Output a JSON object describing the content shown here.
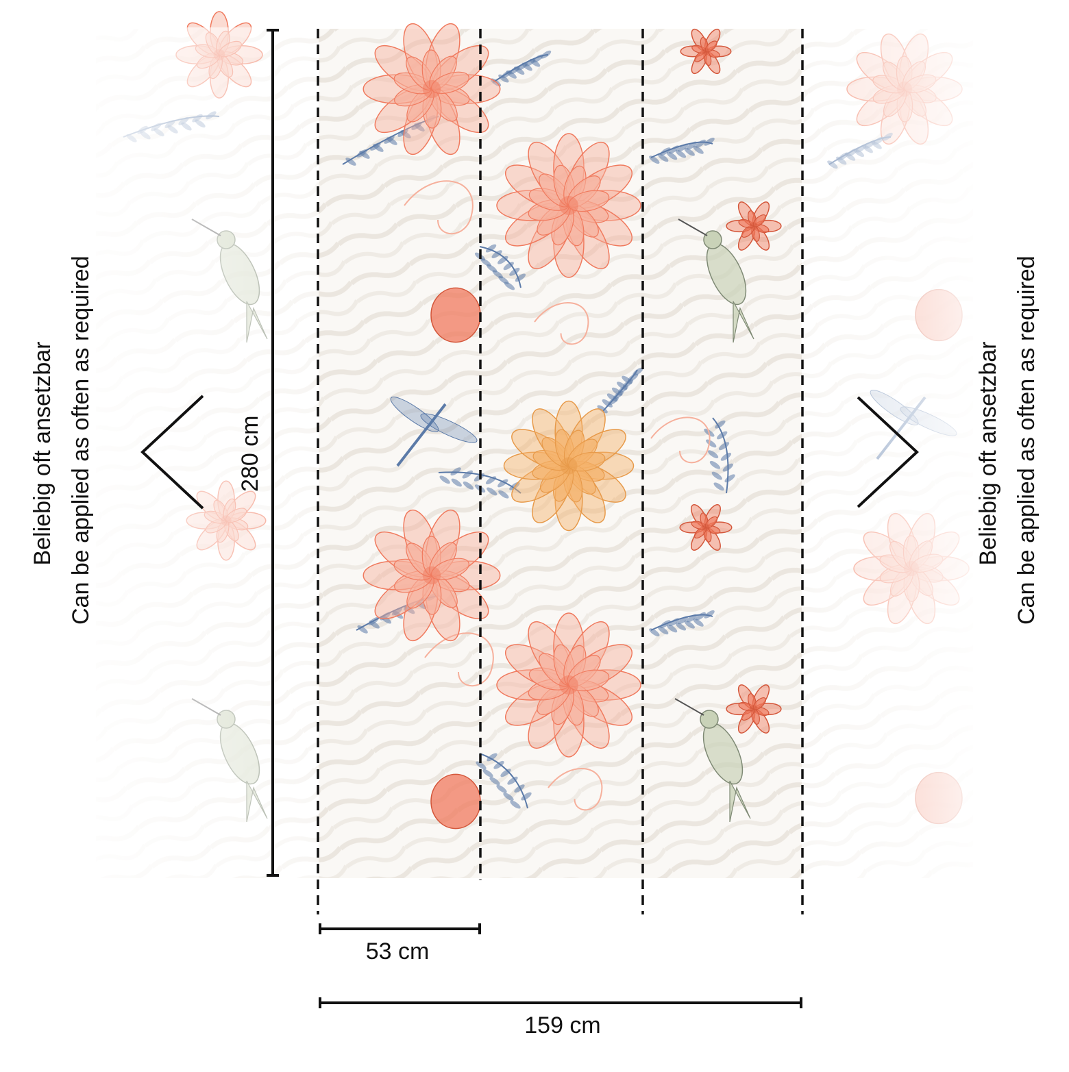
{
  "height_label": "280 cm",
  "strip_width_label": "53 cm",
  "total_width_label": "159 cm",
  "repeat_note": {
    "line_de": "Beliebig oft ansetzbar",
    "line_en": "Can be applied as often as required"
  },
  "colors": {
    "coral": "#f07a5e",
    "salmon": "#f6b09c",
    "blue": "#5b7aa8",
    "peach": "#f5b26b",
    "sage": "#c9d2b8",
    "stripe": "#ece8e2",
    "line": "#111111"
  },
  "icons": {
    "left_arrow": "chevron-left-icon",
    "right_arrow": "chevron-right-icon"
  }
}
